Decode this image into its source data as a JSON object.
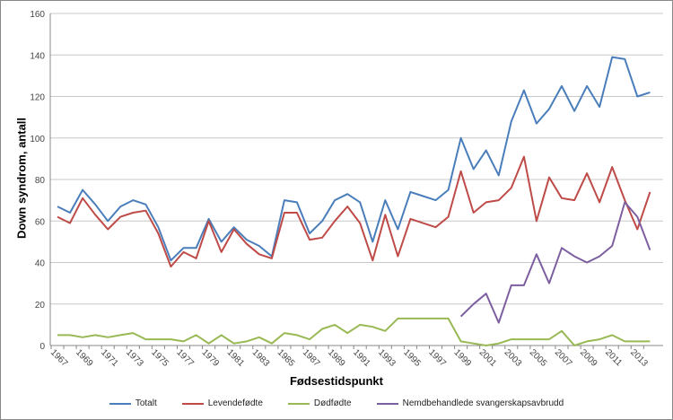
{
  "chart_data": {
    "type": "line",
    "title": "",
    "xlabel": "Fødsestidspunkt",
    "ylabel": "Down syndrom, antall",
    "ylim": [
      0,
      160
    ],
    "yticks": [
      0,
      20,
      40,
      60,
      80,
      100,
      120,
      140,
      160
    ],
    "grid": true,
    "legend_position": "bottom",
    "x": [
      1967,
      1968,
      1969,
      1970,
      1971,
      1972,
      1973,
      1974,
      1975,
      1976,
      1977,
      1978,
      1979,
      1980,
      1981,
      1982,
      1983,
      1984,
      1985,
      1986,
      1987,
      1988,
      1989,
      1990,
      1991,
      1992,
      1993,
      1994,
      1995,
      1996,
      1997,
      1998,
      1999,
      2000,
      2001,
      2002,
      2003,
      2004,
      2005,
      2006,
      2007,
      2008,
      2009,
      2010,
      2011,
      2012,
      2013,
      2014
    ],
    "xtick_labels": [
      "1967",
      "1969",
      "1971",
      "1973",
      "1975",
      "1977",
      "1979",
      "1981",
      "1983",
      "1985",
      "1987",
      "1989",
      "1991",
      "1993",
      "1995",
      "1997",
      "1999",
      "2001",
      "2003",
      "2005",
      "2007",
      "2009",
      "2011",
      "2013"
    ],
    "series": [
      {
        "name": "Totalt",
        "color": "#4a7ebb",
        "values": [
          67,
          64,
          75,
          68,
          60,
          67,
          70,
          68,
          57,
          41,
          47,
          47,
          61,
          50,
          57,
          51,
          48,
          43,
          70,
          69,
          54,
          60,
          70,
          73,
          69,
          50,
          70,
          56,
          74,
          72,
          70,
          75,
          100,
          85,
          94,
          82,
          108,
          123,
          107,
          114,
          125,
          113,
          125,
          115,
          139,
          138,
          120,
          122
        ]
      },
      {
        "name": "Levendefødte",
        "color": "#be4b48",
        "values": [
          62,
          59,
          71,
          63,
          56,
          62,
          64,
          65,
          54,
          38,
          45,
          42,
          60,
          45,
          56,
          49,
          44,
          42,
          64,
          64,
          51,
          52,
          60,
          67,
          59,
          41,
          63,
          43,
          61,
          59,
          57,
          62,
          84,
          64,
          69,
          70,
          76,
          91,
          60,
          81,
          71,
          70,
          83,
          69,
          86,
          70,
          56,
          74
        ]
      },
      {
        "name": "Dødfødte",
        "color": "#98b954",
        "values": [
          5,
          5,
          4,
          5,
          4,
          5,
          6,
          3,
          3,
          3,
          2,
          5,
          1,
          5,
          1,
          2,
          4,
          1,
          6,
          5,
          3,
          8,
          10,
          6,
          10,
          9,
          7,
          13,
          13,
          13,
          13,
          13,
          2,
          1,
          0,
          1,
          3,
          3,
          3,
          3,
          7,
          0,
          2,
          3,
          5,
          2,
          2,
          2
        ]
      },
      {
        "name": "Nemdbehandlede svangerskapsavbrudd",
        "color": "#7d5fa0",
        "values": [
          null,
          null,
          null,
          null,
          null,
          null,
          null,
          null,
          null,
          null,
          null,
          null,
          null,
          null,
          null,
          null,
          null,
          null,
          null,
          null,
          null,
          null,
          null,
          null,
          null,
          null,
          null,
          null,
          null,
          null,
          null,
          null,
          14,
          20,
          25,
          11,
          29,
          29,
          44,
          30,
          47,
          43,
          40,
          43,
          48,
          69,
          62,
          46
        ]
      }
    ]
  }
}
